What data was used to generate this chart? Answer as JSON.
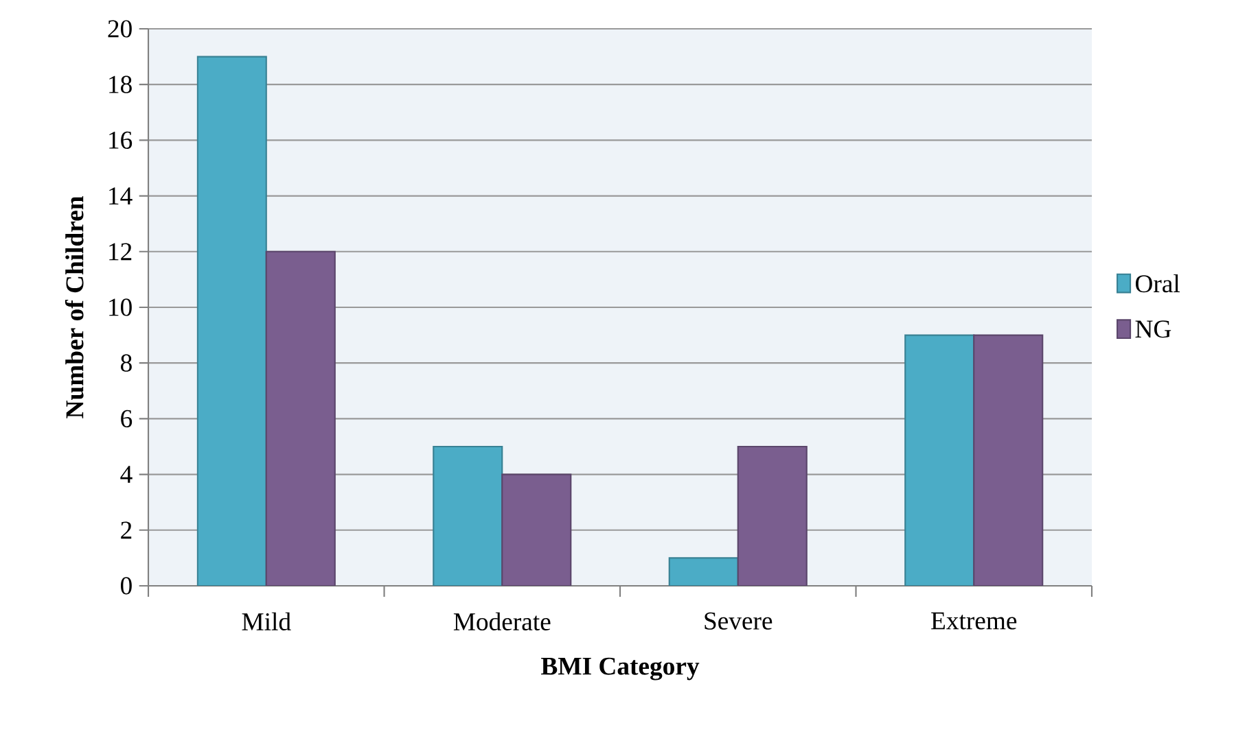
{
  "chart_data": {
    "type": "bar",
    "xlabel": "BMI Category",
    "ylabel": "Number of Children",
    "categories": [
      "Mild",
      "Moderate",
      "Severe",
      "Extreme"
    ],
    "series": [
      {
        "name": "Oral",
        "color": "#4bacc6",
        "values": [
          19,
          5,
          1,
          9
        ]
      },
      {
        "name": "NG",
        "color": "#7a5e8f",
        "values": [
          12,
          4,
          5,
          9
        ]
      }
    ],
    "ylim": [
      0,
      20
    ],
    "yticks": [
      0,
      2,
      4,
      6,
      8,
      10,
      12,
      14,
      16,
      18,
      20
    ],
    "grid": "y",
    "legend": "right"
  }
}
